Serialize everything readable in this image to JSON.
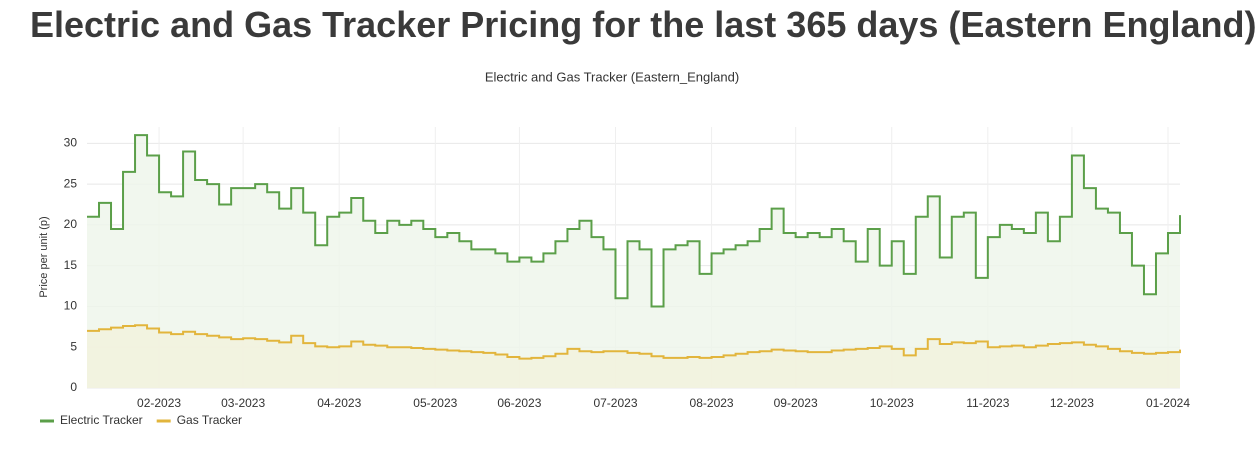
{
  "page_title": "Electric and Gas Tracker Pricing for the last 365 days (Eastern England)",
  "chart_data": {
    "type": "line",
    "step": true,
    "title": "Electric and Gas Tracker (Eastern_England)",
    "y_label": "Price per unit (p)",
    "categories": [
      null,
      null,
      null,
      null,
      null,
      null,
      "02-2023",
      null,
      null,
      null,
      null,
      null,
      null,
      "03-2023",
      null,
      null,
      null,
      null,
      null,
      null,
      null,
      "04-2023",
      null,
      null,
      null,
      null,
      null,
      null,
      null,
      "05-2023",
      null,
      null,
      null,
      null,
      null,
      null,
      "06-2023",
      null,
      null,
      null,
      null,
      null,
      null,
      null,
      "07-2023",
      null,
      null,
      null,
      null,
      null,
      null,
      null,
      "08-2023",
      null,
      null,
      null,
      null,
      null,
      null,
      "09-2023",
      null,
      null,
      null,
      null,
      null,
      null,
      null,
      "10-2023",
      null,
      null,
      null,
      null,
      null,
      null,
      null,
      "11-2023",
      null,
      null,
      null,
      null,
      null,
      null,
      "12-2023",
      null,
      null,
      null,
      null,
      null,
      null,
      null,
      "01-2024",
      null
    ],
    "series": [
      {
        "name": "Electric Tracker",
        "color": "#5b9f49",
        "fill": "#eef5ea",
        "values": [
          21,
          22.7,
          19.5,
          26.5,
          31,
          28.5,
          24,
          23.5,
          29,
          25.5,
          25,
          22.5,
          24.5,
          24.5,
          25,
          24,
          22,
          24.5,
          21.5,
          17.5,
          21,
          21.5,
          23.3,
          20.5,
          19,
          20.5,
          20,
          20.5,
          19.5,
          18.5,
          19,
          18,
          17,
          17,
          16.5,
          15.5,
          16,
          15.5,
          16.5,
          18,
          19.5,
          20.5,
          18.5,
          17,
          11,
          18,
          17,
          10,
          17,
          17.5,
          18,
          14,
          16.5,
          17,
          17.5,
          18,
          19.5,
          22,
          19,
          18.5,
          19,
          18.5,
          19.5,
          18,
          15.5,
          19.5,
          15,
          18,
          14,
          21,
          23.5,
          16,
          21,
          21.5,
          13.5,
          18.5,
          20,
          19.5,
          19,
          21.5,
          18,
          21,
          28.5,
          24.5,
          22,
          21.5,
          19,
          15,
          11.5,
          16.5,
          19,
          21.2
        ]
      },
      {
        "name": "Gas Tracker",
        "color": "#e2b53c",
        "fill": "#f3f1dc",
        "values": [
          7,
          7.2,
          7.4,
          7.6,
          7.7,
          7.3,
          6.8,
          6.6,
          6.9,
          6.6,
          6.4,
          6.2,
          6.0,
          6.1,
          6.0,
          5.8,
          5.6,
          6.4,
          5.5,
          5.1,
          5.0,
          5.1,
          5.7,
          5.3,
          5.2,
          5.0,
          5.0,
          4.9,
          4.8,
          4.7,
          4.6,
          4.5,
          4.4,
          4.3,
          4.1,
          3.8,
          3.6,
          3.7,
          3.9,
          4.2,
          4.8,
          4.5,
          4.4,
          4.5,
          4.5,
          4.3,
          4.2,
          3.9,
          3.7,
          3.7,
          3.8,
          3.7,
          3.8,
          4.0,
          4.2,
          4.4,
          4.5,
          4.7,
          4.6,
          4.5,
          4.4,
          4.4,
          4.6,
          4.7,
          4.8,
          4.9,
          5.1,
          4.8,
          4.0,
          4.8,
          6.0,
          5.4,
          5.6,
          5.5,
          5.7,
          5.0,
          5.1,
          5.2,
          5.0,
          5.2,
          5.4,
          5.5,
          5.6,
          5.3,
          5.1,
          4.8,
          4.5,
          4.3,
          4.2,
          4.3,
          4.4,
          4.7
        ]
      }
    ],
    "ylim": [
      0,
      32
    ],
    "yticks": [
      0,
      5,
      10,
      15,
      20,
      25,
      30
    ],
    "grid": true,
    "legend": "bottom-left"
  }
}
